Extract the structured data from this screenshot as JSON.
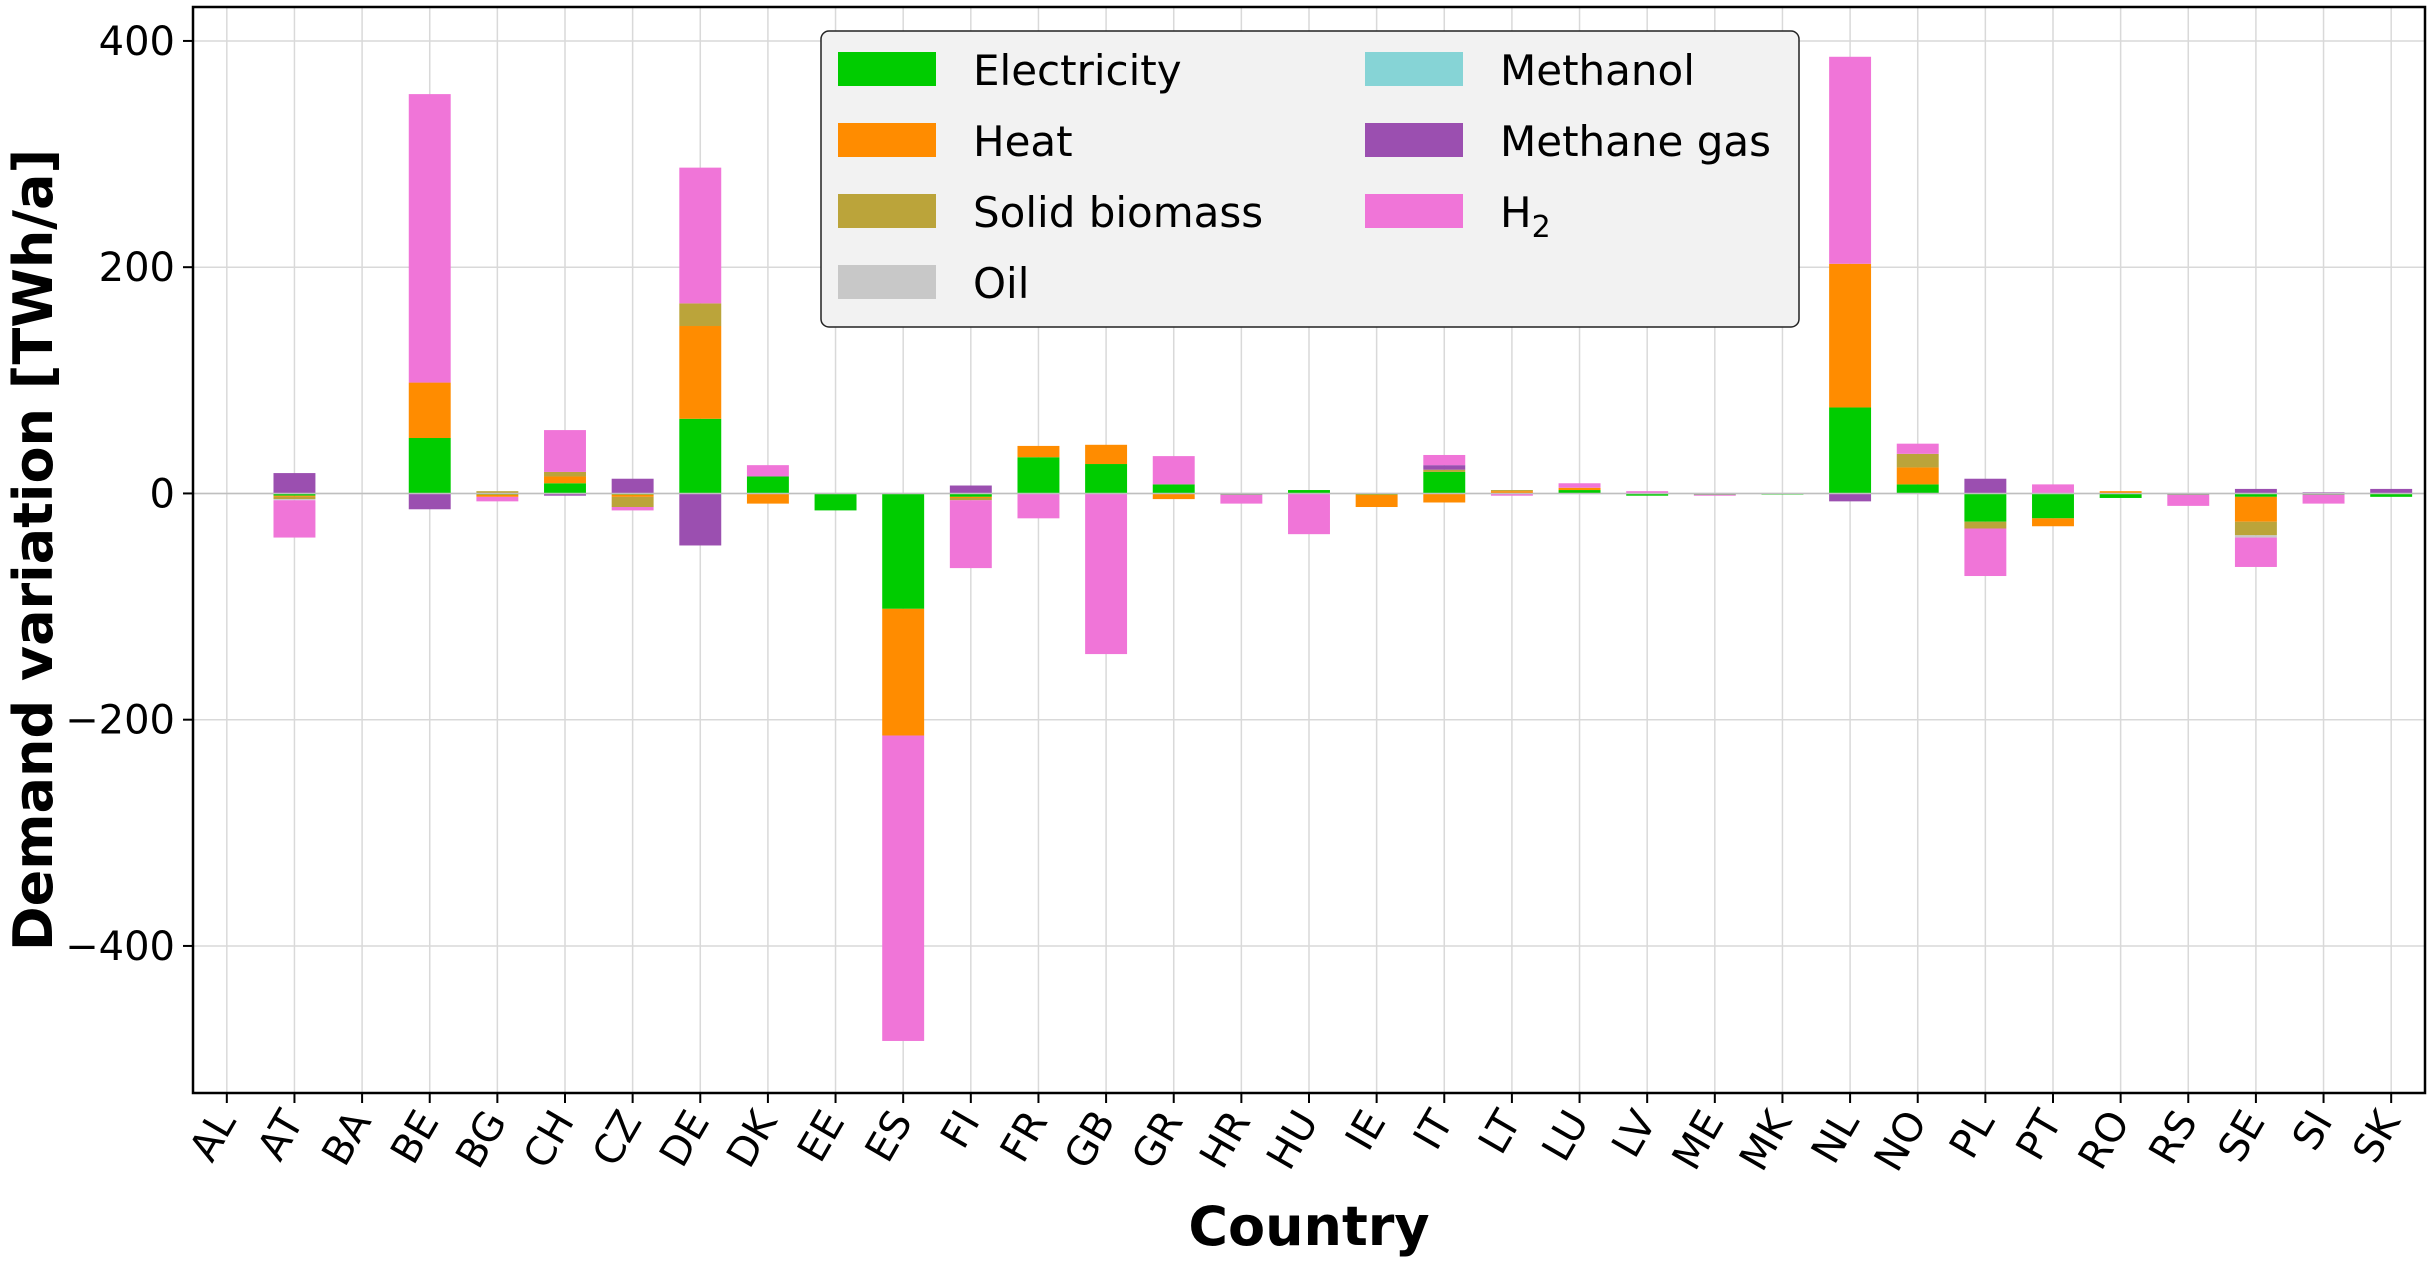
{
  "chart_data": {
    "type": "bar",
    "stacked": true,
    "xlabel": "Country",
    "ylabel": "Demand variation [TWh/a]",
    "ylim": [
      -530,
      430
    ],
    "yticks": [
      -400,
      -200,
      0,
      200,
      400
    ],
    "grid": true,
    "legend_position": "top-center",
    "categories": [
      "AL",
      "AT",
      "BA",
      "BE",
      "BG",
      "CH",
      "CZ",
      "DE",
      "DK",
      "EE",
      "ES",
      "FI",
      "FR",
      "GB",
      "GR",
      "HR",
      "HU",
      "IE",
      "IT",
      "LT",
      "LU",
      "LV",
      "ME",
      "MK",
      "NL",
      "NO",
      "PL",
      "PT",
      "RO",
      "RS",
      "SE",
      "SI",
      "SK"
    ],
    "series": [
      {
        "name": "Electricity",
        "color": "#00cc00",
        "values": [
          0,
          -2,
          0,
          49,
          -1,
          9,
          -1,
          66,
          15,
          -15,
          -102,
          -3,
          32,
          26,
          8,
          -1,
          3,
          -1,
          19,
          0,
          3,
          -2,
          -1,
          -1,
          76,
          8,
          -25,
          -22,
          -4,
          -1,
          -3,
          -1,
          -3
        ]
      },
      {
        "name": "Heat",
        "color": "#ff8c00",
        "values": [
          0,
          -1,
          0,
          49,
          -2,
          6,
          -2,
          82,
          -9,
          0,
          -112,
          -1,
          10,
          17,
          -5,
          0,
          0,
          -11,
          -8,
          2,
          2,
          0,
          0,
          0,
          127,
          15,
          0,
          -7,
          2,
          0,
          -22,
          0,
          0
        ]
      },
      {
        "name": "Solid biomass",
        "color": "#bba43a",
        "values": [
          0,
          -2,
          0,
          0,
          2,
          4,
          -9,
          20,
          0,
          0,
          0,
          -2,
          0,
          0,
          0,
          0,
          0,
          0,
          2,
          1,
          0,
          0,
          0,
          0,
          0,
          12,
          -6,
          0,
          0,
          0,
          -12,
          0,
          0
        ]
      },
      {
        "name": "Oil",
        "color": "#c8c8c8",
        "values": [
          0,
          -1,
          0,
          0,
          0,
          0,
          0,
          0,
          0,
          0,
          0,
          0,
          0,
          0,
          0,
          0,
          0,
          0,
          0,
          0,
          0,
          0,
          0,
          0,
          0,
          0,
          0,
          0,
          0,
          0,
          -2,
          0,
          0
        ]
      },
      {
        "name": "Methanol",
        "color": "#86d4d6",
        "values": [
          0,
          0,
          0,
          0,
          0,
          0,
          0,
          0,
          0,
          0,
          0,
          0,
          0,
          0,
          0,
          0,
          0,
          0,
          0,
          0,
          0,
          0,
          0,
          0,
          0,
          0,
          0,
          0,
          0,
          0,
          0,
          0,
          0
        ]
      },
      {
        "name": "Methane gas",
        "color": "#9b4fb0",
        "values": [
          0,
          18,
          0,
          -14,
          0,
          -2,
          13,
          -46,
          0,
          0,
          0,
          7,
          0,
          0,
          0,
          0,
          0,
          0,
          4,
          0,
          0,
          0,
          0,
          0,
          -7,
          0,
          13,
          0,
          0,
          0,
          4,
          1,
          4
        ]
      },
      {
        "name": "H2",
        "label_base": "H",
        "label_sub": "2",
        "color": "#f075d8",
        "values": [
          0,
          -33,
          0,
          255,
          -4,
          37,
          -3,
          120,
          10,
          0,
          -270,
          -60,
          -22,
          -142,
          25,
          -8,
          -36,
          0,
          9,
          -2,
          4,
          2,
          -1,
          0,
          183,
          9,
          -42,
          8,
          0,
          -10,
          -26,
          -8,
          0
        ]
      }
    ]
  }
}
